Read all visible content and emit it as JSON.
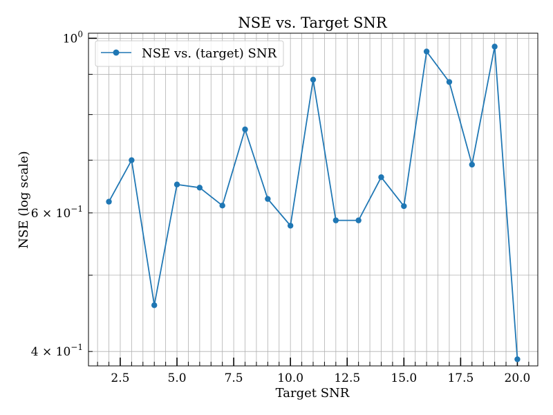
{
  "chart_data": {
    "type": "line",
    "title": "NSE vs. Target SNR",
    "xlabel": "Target SNR",
    "ylabel": "NSE (log scale)",
    "xlim": [
      1.1,
      20.9
    ],
    "ylim": [
      0.3835,
      1.015
    ],
    "yscale": "log",
    "grid": true,
    "legend_position": "upper-left",
    "x_ticks": [
      2.5,
      5.0,
      7.5,
      10.0,
      12.5,
      15.0,
      17.5,
      20.0
    ],
    "x_tick_labels": [
      "2.5",
      "5.0",
      "7.5",
      "10.0",
      "12.5",
      "15.0",
      "17.5",
      "20.0"
    ],
    "y_ticks": [
      {
        "value": 1.0,
        "base": "10",
        "exp": "0"
      },
      {
        "value": 0.6,
        "base": "6 × 10",
        "exp": "−1"
      },
      {
        "value": 0.4,
        "base": "4 × 10",
        "exp": "−1"
      }
    ],
    "series": [
      {
        "name": "NSE vs. (target) SNR",
        "color": "#1f77b4",
        "marker": "circle",
        "x": [
          2,
          3,
          4,
          5,
          6,
          7,
          8,
          9,
          10,
          11,
          12,
          13,
          14,
          15,
          16,
          17,
          18,
          19,
          20
        ],
        "y": [
          0.62,
          0.7,
          0.458,
          0.652,
          0.646,
          0.613,
          0.766,
          0.625,
          0.578,
          0.886,
          0.587,
          0.587,
          0.666,
          0.612,
          0.962,
          0.88,
          0.691,
          0.976,
          0.391
        ]
      }
    ]
  }
}
